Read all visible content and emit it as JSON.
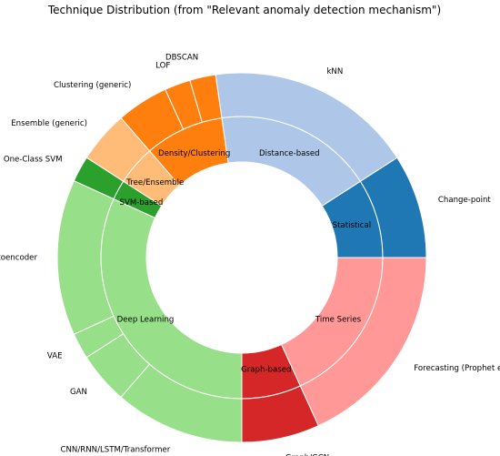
{
  "chart_data": {
    "type": "sunburst",
    "title": "Technique Distribution (from \"Relevant anomaly detection mechanism\")",
    "legend": "none",
    "grid": false,
    "start_angle_deg": 0,
    "direction": "counterclockwise",
    "inner_ring": [
      {
        "name": "Statistical",
        "value": 4,
        "color": "#1f77b4"
      },
      {
        "name": "Distance-based",
        "value": 8,
        "color": "#aec7e8"
      },
      {
        "name": "Density/Clustering",
        "value": 4,
        "color": "#ff7f0e"
      },
      {
        "name": "Tree/Ensemble",
        "value": 2,
        "color": "#ffbb78"
      },
      {
        "name": "SVM-based",
        "value": 1,
        "color": "#2ca02c"
      },
      {
        "name": "Deep Learning",
        "value": 14,
        "color": "#98df8a"
      },
      {
        "name": "Graph-based",
        "value": 3,
        "color": "#d62728"
      },
      {
        "name": "Time Series",
        "value": 8,
        "color": "#ff9896"
      }
    ],
    "outer_ring": [
      {
        "name": "Change-point",
        "value": 4,
        "parent": "Statistical",
        "color": "#1f77b4"
      },
      {
        "name": "kNN",
        "value": 8,
        "parent": "Distance-based",
        "color": "#aec7e8"
      },
      {
        "name": "DBSCAN",
        "value": 1,
        "parent": "Density/Clustering",
        "color": "#ff7f0e"
      },
      {
        "name": "LOF",
        "value": 1,
        "parent": "Density/Clustering",
        "color": "#ff7f0e"
      },
      {
        "name": "Clustering (generic)",
        "value": 2,
        "parent": "Density/Clustering",
        "color": "#ff7f0e"
      },
      {
        "name": "Ensemble (generic)",
        "value": 2,
        "parent": "Tree/Ensemble",
        "color": "#ffbb78"
      },
      {
        "name": "One-Class SVM",
        "value": 1,
        "parent": "SVM-based",
        "color": "#2ca02c"
      },
      {
        "name": "Autoencoder",
        "value": 6,
        "parent": "Deep Learning",
        "color": "#98df8a"
      },
      {
        "name": "VAE",
        "value": 1,
        "parent": "Deep Learning",
        "color": "#98df8a"
      },
      {
        "name": "GAN",
        "value": 2,
        "parent": "Deep Learning",
        "color": "#98df8a"
      },
      {
        "name": "CNN/RNN/LSTM/Transformer",
        "value": 5,
        "parent": "Deep Learning",
        "color": "#98df8a"
      },
      {
        "name": "Graph/GCN",
        "value": 3,
        "parent": "Graph-based",
        "color": "#d62728"
      },
      {
        "name": "Forecasting (Prophet etc.)",
        "value": 8,
        "parent": "Time Series",
        "color": "#ff9896"
      }
    ]
  }
}
